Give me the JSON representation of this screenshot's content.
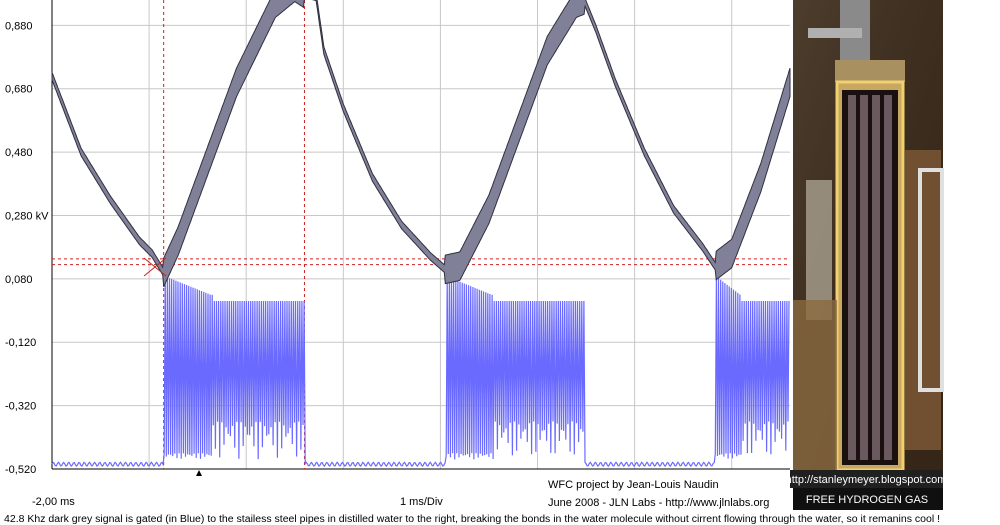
{
  "chart_data": {
    "type": "line",
    "title": "",
    "xlabel": "",
    "ylabel": "",
    "ylim": [
      -0.52,
      0.96
    ],
    "y_unit": "kV",
    "y_ticks": [
      {
        "value": 0.88,
        "label": "0,880"
      },
      {
        "value": 0.68,
        "label": "0,680"
      },
      {
        "value": 0.48,
        "label": "0,480"
      },
      {
        "value": 0.28,
        "label": "0,280 kV"
      },
      {
        "value": 0.08,
        "label": "0,080"
      },
      {
        "value": -0.12,
        "label": "-0,120"
      },
      {
        "value": -0.32,
        "label": "-0,320"
      },
      {
        "value": -0.52,
        "label": "-0,520"
      }
    ],
    "x_start_label": "-2,00 ms",
    "time_base_label": "1 ms/Div",
    "x_range_ms": [
      -2.0,
      5.6
    ],
    "grid": true,
    "cursors": {
      "time_ms": [
        -0.85,
        0.6
      ],
      "level_kV": [
        0.143,
        0.125
      ]
    },
    "series": [
      {
        "color": "#808098",
        "x_ms": [
          -2.0,
          -1.7,
          -1.4,
          -1.1,
          -0.97,
          -0.85,
          -0.7,
          -0.4,
          -0.1,
          0.3,
          0.5,
          0.6,
          0.72,
          0.8,
          1.0,
          1.3,
          1.6,
          1.9,
          2.05,
          2.2,
          2.5,
          2.8,
          3.1,
          3.4,
          3.48,
          3.6,
          3.8,
          4.1,
          4.4,
          4.7,
          4.83,
          5.0,
          5.3,
          5.6
        ],
        "values_kV": [
          0.72,
          0.48,
          0.33,
          0.2,
          0.16,
          0.1,
          0.2,
          0.45,
          0.7,
          0.95,
          1.0,
          0.98,
          0.97,
          0.8,
          0.62,
          0.4,
          0.25,
          0.15,
          0.11,
          0.12,
          0.3,
          0.55,
          0.8,
          0.95,
          0.96,
          0.87,
          0.7,
          0.48,
          0.3,
          0.18,
          0.12,
          0.16,
          0.4,
          0.7
        ]
      },
      {
        "color": "#6a6aff",
        "gate_on_ms": [
          [
            -0.85,
            0.6
          ],
          [
            2.05,
            3.48
          ],
          [
            4.83,
            5.6
          ]
        ],
        "baseline_kV": -0.505,
        "envelope_peak_kV": 0.09,
        "envelope_trough_kV": -0.49
      }
    ]
  },
  "footer": {
    "xstart": "-2,00 ms",
    "timebase": "1 ms/Div",
    "credit_line1": "WFC project by Jean-Louis Naudin",
    "credit_line2": "June 2008  - JLN Labs - http://www.jlnlabs.org",
    "caption": "42.8 Khz dark grey signal is gated (in Blue) to the stailess steel pipes in distilled water to the right, breaking the bonds in the water molecule without cirrent flowing through the water, so it remanins cool !"
  },
  "photo": {
    "url_label": "http://stanleymeyer.blogspot.com",
    "gas_label": "FREE HYDROGEN GAS"
  }
}
